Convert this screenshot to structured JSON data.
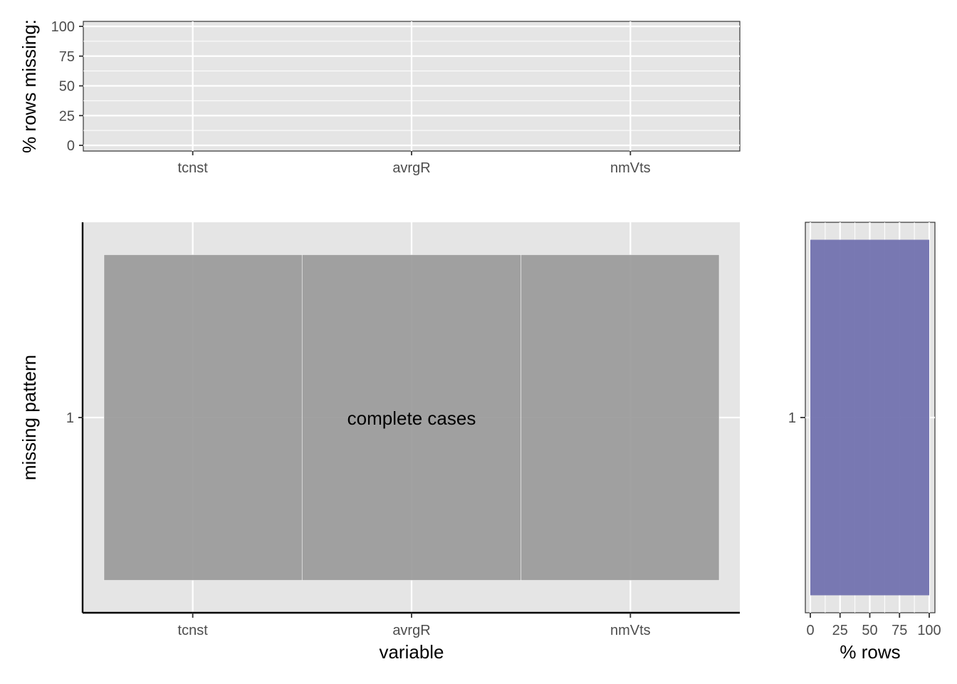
{
  "chart_data": [
    {
      "type": "bar",
      "categories": [
        "tcnst",
        "avrgR",
        "nmVts"
      ],
      "values": [
        0,
        0,
        0
      ],
      "ylabel": "% rows missing:",
      "xlabel": "",
      "ylim": [
        0,
        100
      ],
      "y_ticks": [
        0,
        25,
        50,
        75,
        100
      ],
      "grid": true
    },
    {
      "type": "heatmap",
      "categories": [
        "tcnst",
        "avrgR",
        "nmVts"
      ],
      "patterns": [
        "1"
      ],
      "cells": [
        {
          "pattern": "1",
          "variable": "tcnst",
          "missing": false
        },
        {
          "pattern": "1",
          "variable": "avrgR",
          "missing": false
        },
        {
          "pattern": "1",
          "variable": "nmVts",
          "missing": false
        }
      ],
      "annotation": "complete cases",
      "xlabel": "variable",
      "ylabel": "missing pattern",
      "grid": true,
      "colors": {
        "present": "#9a9a9a",
        "panel": "#e5e5e5"
      }
    },
    {
      "type": "bar",
      "orientation": "horizontal",
      "categories": [
        "1"
      ],
      "values": [
        100
      ],
      "xlabel": "% rows",
      "ylabel": "",
      "xlim": [
        0,
        100
      ],
      "x_ticks": [
        0,
        25,
        50,
        75,
        100
      ],
      "grid": true,
      "colors": {
        "bar": "#7474b0"
      }
    }
  ]
}
